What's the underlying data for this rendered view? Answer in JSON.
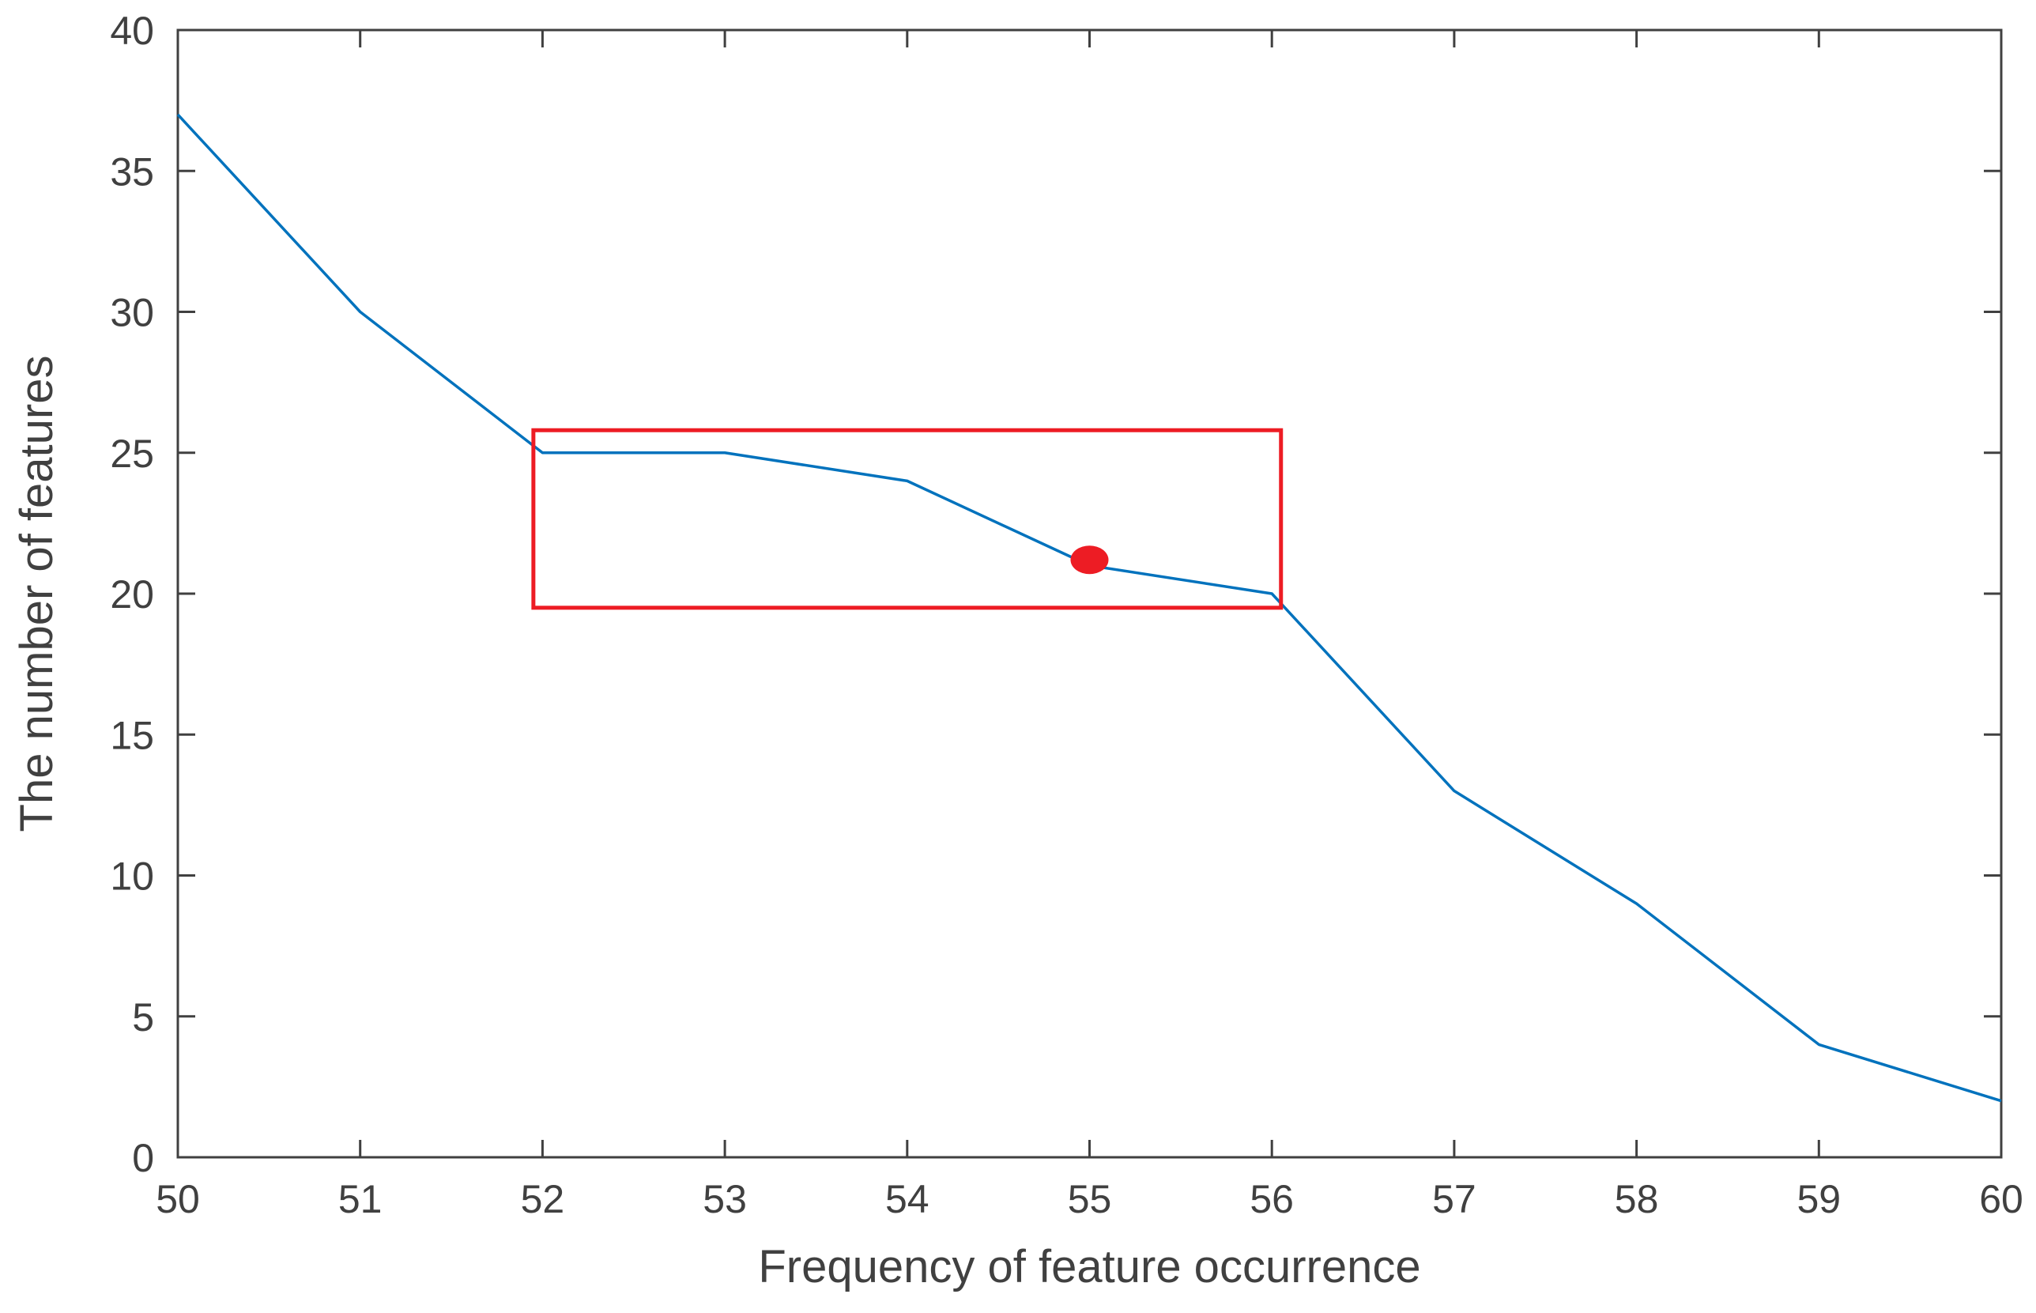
{
  "chart_data": {
    "type": "line",
    "title": "",
    "xlabel": "Frequency of feature occurrence",
    "ylabel": "The number of features",
    "xlim": [
      50,
      60
    ],
    "ylim": [
      0,
      40
    ],
    "xticks": [
      50,
      51,
      52,
      53,
      54,
      55,
      56,
      57,
      58,
      59,
      60
    ],
    "yticks": [
      0,
      5,
      10,
      15,
      20,
      25,
      30,
      35,
      40
    ],
    "grid": false,
    "series": [
      {
        "x": [
          50,
          51,
          52,
          53,
          54,
          55,
          56,
          57,
          58,
          59,
          60
        ],
        "values": [
          37,
          30,
          25,
          25,
          24,
          21,
          20,
          13,
          9,
          4,
          2
        ]
      }
    ],
    "highlight_point": {
      "x": 55,
      "y": 21.2
    },
    "highlight_box": {
      "x": [
        51.95,
        56.05
      ],
      "y": [
        19.5,
        25.8
      ]
    },
    "colors": {
      "line": "#0072BD",
      "highlight": "#ED1C24",
      "axis": "#404040"
    }
  }
}
